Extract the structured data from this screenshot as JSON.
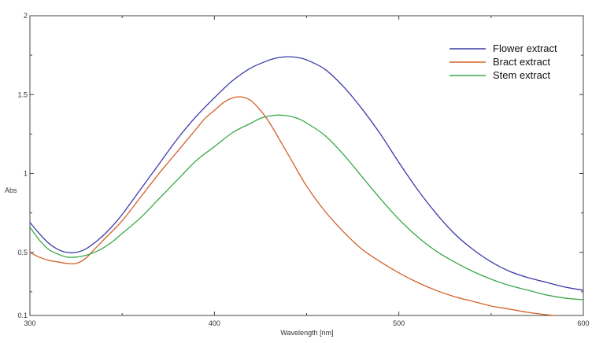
{
  "chart_data": {
    "type": "line",
    "xlabel": "Wavelength [nm]",
    "ylabel": "Abs",
    "xlim": [
      300,
      600
    ],
    "ylim": [
      0.1,
      2
    ],
    "xticks": [
      300,
      400,
      500,
      600
    ],
    "yticks": [
      {
        "value": 0.1,
        "label": "0.1"
      },
      {
        "value": 0.5,
        "label": "0.5"
      },
      {
        "value": 1,
        "label": "1"
      },
      {
        "value": 1.5,
        "label": "1.5"
      },
      {
        "value": 2,
        "label": "2"
      }
    ],
    "grid": false,
    "legend_position": "top-right",
    "series": [
      {
        "name": "Flower extract",
        "color": "#3b3ba8",
        "x": [
          300,
          305,
          310,
          315,
          320,
          325,
          330,
          335,
          340,
          345,
          350,
          360,
          370,
          380,
          390,
          400,
          410,
          420,
          430,
          435,
          440,
          445,
          450,
          460,
          470,
          480,
          490,
          500,
          510,
          520,
          530,
          540,
          550,
          560,
          570,
          580,
          590,
          600
        ],
        "y": [
          0.69,
          0.62,
          0.56,
          0.52,
          0.5,
          0.5,
          0.52,
          0.56,
          0.61,
          0.67,
          0.74,
          0.9,
          1.06,
          1.22,
          1.36,
          1.48,
          1.59,
          1.67,
          1.72,
          1.735,
          1.74,
          1.735,
          1.72,
          1.66,
          1.55,
          1.41,
          1.25,
          1.07,
          0.9,
          0.75,
          0.62,
          0.52,
          0.44,
          0.38,
          0.34,
          0.31,
          0.28,
          0.26
        ]
      },
      {
        "name": "Bract extract",
        "color": "#d2612a",
        "x": [
          300,
          305,
          310,
          315,
          320,
          325,
          330,
          335,
          340,
          350,
          360,
          370,
          380,
          390,
          395,
          400,
          405,
          410,
          415,
          420,
          425,
          430,
          440,
          450,
          460,
          470,
          480,
          490,
          500,
          510,
          520,
          530,
          540,
          550,
          560,
          570,
          580,
          585
        ],
        "y": [
          0.5,
          0.47,
          0.45,
          0.44,
          0.43,
          0.43,
          0.46,
          0.52,
          0.58,
          0.7,
          0.85,
          1.0,
          1.14,
          1.28,
          1.35,
          1.4,
          1.45,
          1.48,
          1.485,
          1.46,
          1.4,
          1.32,
          1.12,
          0.92,
          0.76,
          0.63,
          0.52,
          0.44,
          0.37,
          0.31,
          0.26,
          0.22,
          0.19,
          0.16,
          0.14,
          0.12,
          0.105,
          0.1
        ]
      },
      {
        "name": "Stem extract",
        "color": "#3aa84a",
        "x": [
          300,
          305,
          310,
          315,
          320,
          325,
          330,
          335,
          340,
          345,
          350,
          360,
          370,
          380,
          390,
          400,
          410,
          420,
          425,
          430,
          435,
          440,
          445,
          450,
          460,
          470,
          480,
          490,
          500,
          510,
          520,
          530,
          540,
          550,
          560,
          570,
          580,
          590,
          600
        ],
        "y": [
          0.66,
          0.58,
          0.52,
          0.49,
          0.47,
          0.47,
          0.48,
          0.5,
          0.53,
          0.57,
          0.62,
          0.72,
          0.84,
          0.96,
          1.08,
          1.17,
          1.26,
          1.32,
          1.35,
          1.365,
          1.37,
          1.365,
          1.35,
          1.32,
          1.24,
          1.12,
          0.98,
          0.84,
          0.71,
          0.6,
          0.51,
          0.44,
          0.38,
          0.33,
          0.29,
          0.26,
          0.23,
          0.21,
          0.2
        ]
      }
    ]
  }
}
